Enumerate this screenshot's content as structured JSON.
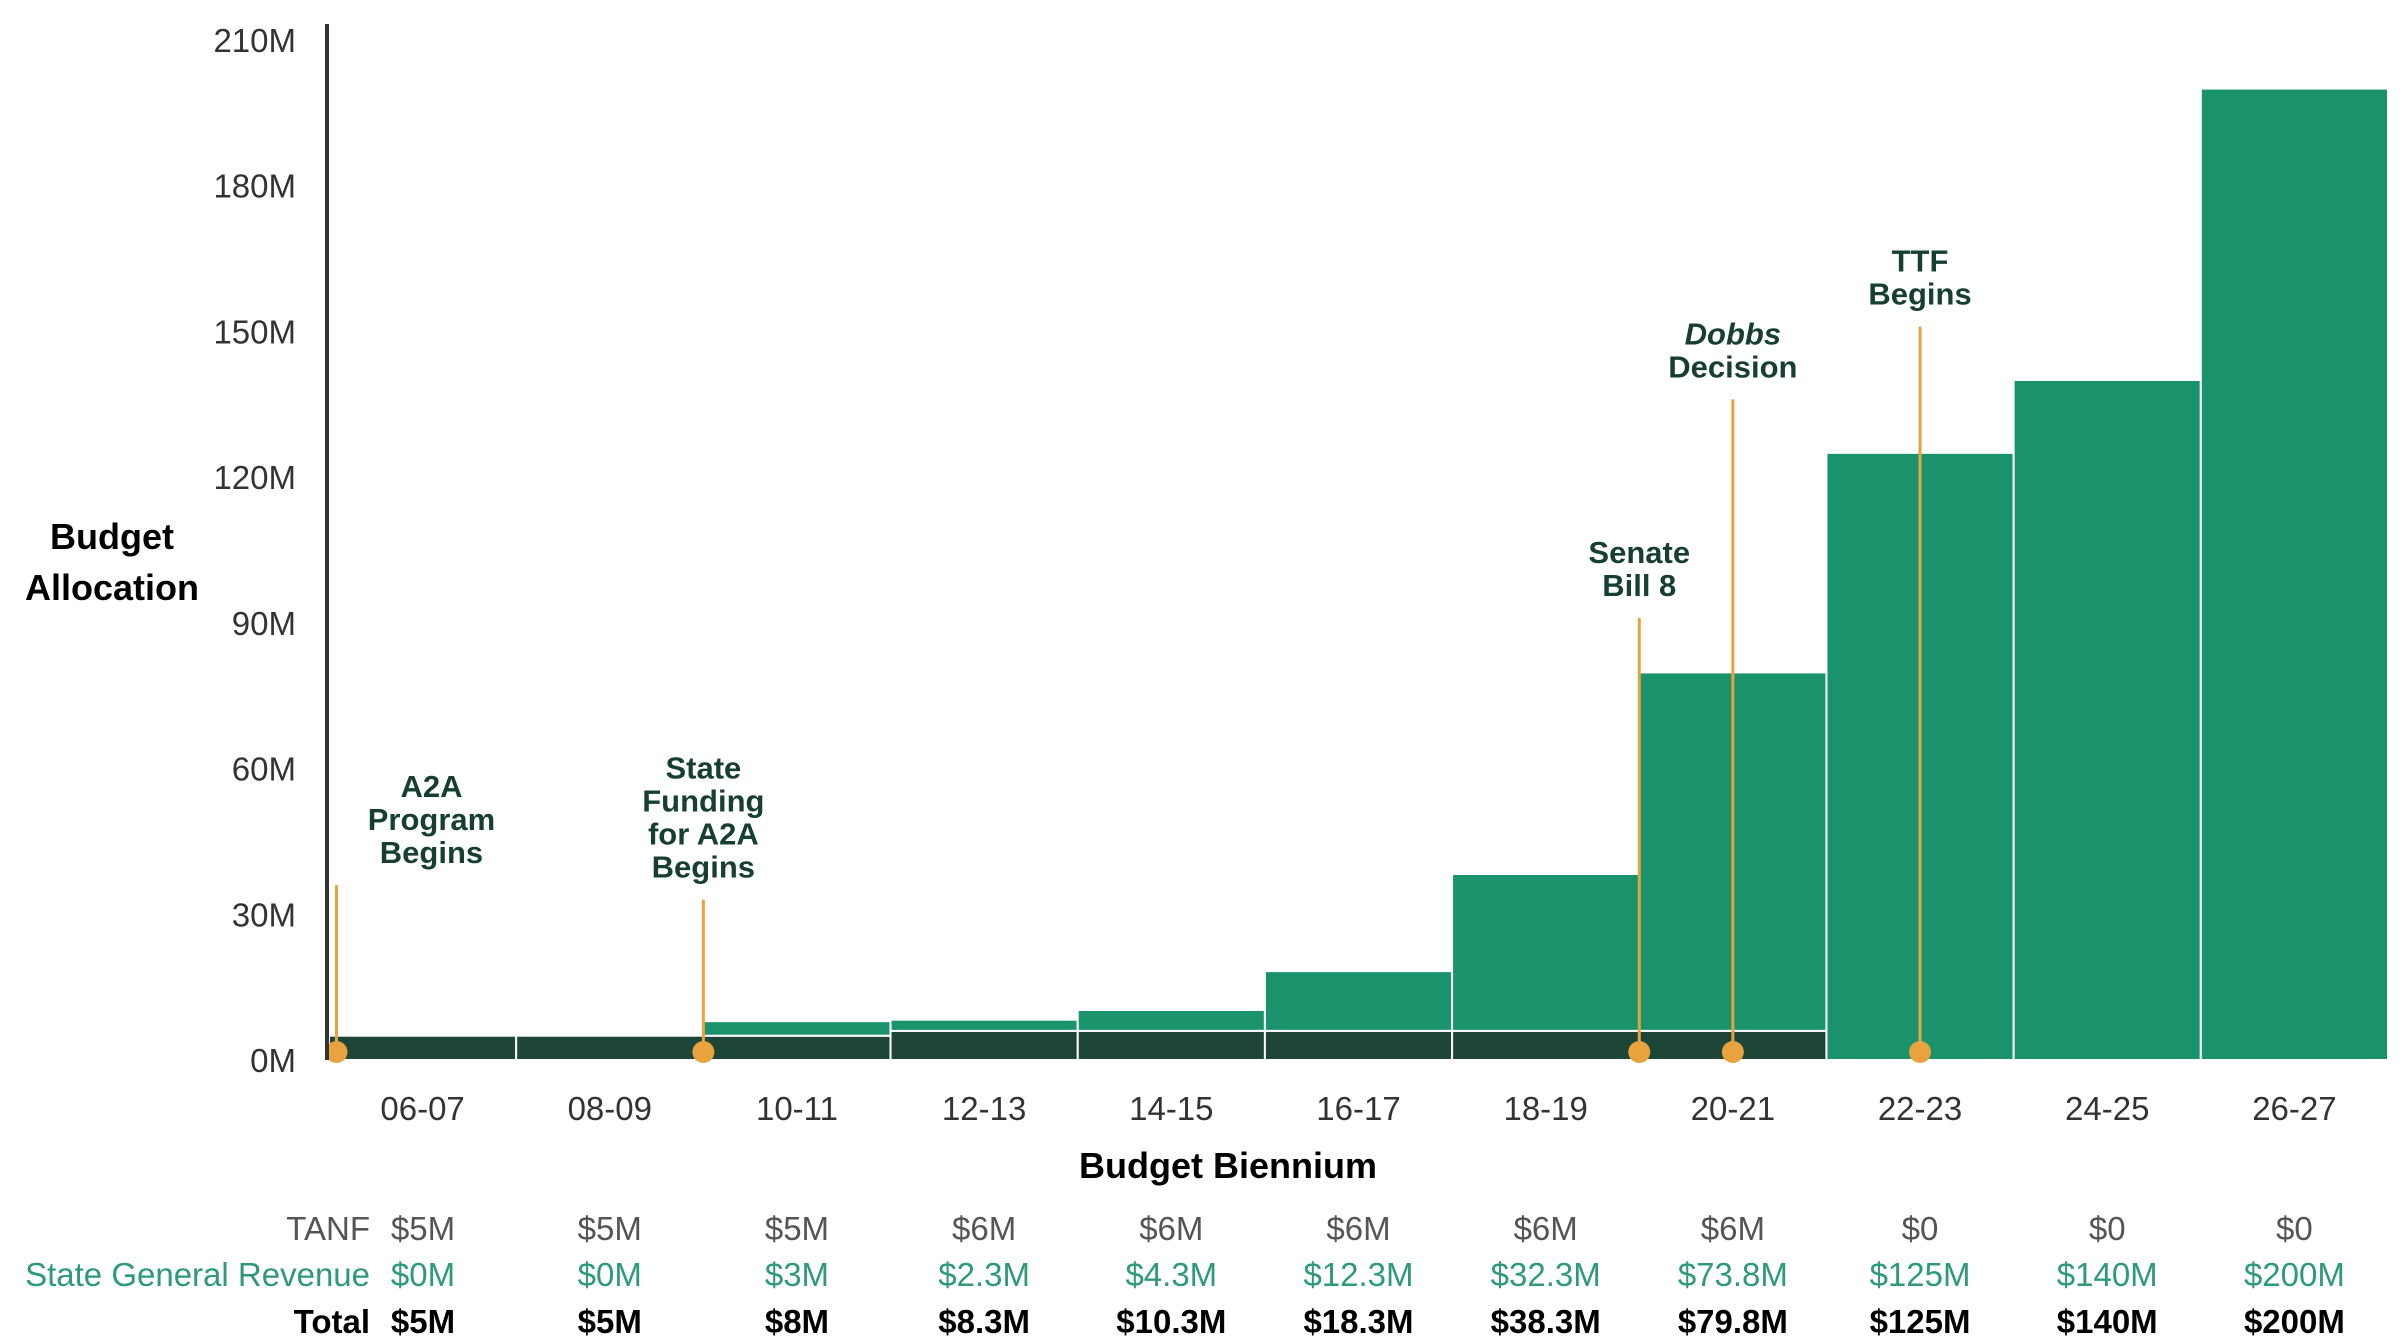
{
  "chart_data": {
    "type": "bar",
    "stacked": true,
    "title": "",
    "xlabel": "Budget Biennium",
    "ylabel": [
      "Budget",
      "Allocation"
    ],
    "ylim": [
      0,
      210
    ],
    "yticks": [
      "0M",
      "30M",
      "60M",
      "90M",
      "120M",
      "150M",
      "180M",
      "210M"
    ],
    "categories": [
      "06-07",
      "08-09",
      "10-11",
      "12-13",
      "14-15",
      "16-17",
      "18-19",
      "20-21",
      "22-23",
      "24-25",
      "26-27"
    ],
    "series": [
      {
        "name": "TANF",
        "color": "#1d4638",
        "values": [
          5,
          5,
          5,
          6,
          6,
          6,
          6,
          6,
          0,
          0,
          0
        ]
      },
      {
        "name": "State General Revenue",
        "color": "#1a936c",
        "values": [
          0,
          0,
          3,
          2.3,
          4.3,
          12.3,
          32.3,
          73.8,
          125,
          140,
          200
        ]
      }
    ],
    "annotations": [
      {
        "lines": [
          "A2A",
          "Program",
          "Begins"
        ],
        "italic_first": false,
        "position": 0.04,
        "line_top": 36
      },
      {
        "lines": [
          "State",
          "Funding",
          "for A2A",
          "Begins"
        ],
        "italic_first": false,
        "position": 2.0,
        "line_top": 33
      },
      {
        "lines": [
          "Senate",
          "Bill 8"
        ],
        "italic_first": false,
        "position": 7.0,
        "line_top": 91
      },
      {
        "lines": [
          "Dobbs",
          "Decision"
        ],
        "italic_first": true,
        "position": 7.5,
        "line_top": 136
      },
      {
        "lines": [
          "TTF",
          "Begins"
        ],
        "italic_first": false,
        "position": 8.5,
        "line_top": 151
      }
    ],
    "marker_color": "#e8a33e",
    "table": {
      "rows": [
        {
          "label": "TANF",
          "values": [
            "$5M",
            "$5M",
            "$5M",
            "$6M",
            "$6M",
            "$6M",
            "$6M",
            "$6M",
            "$0",
            "$0",
            "$0"
          ]
        },
        {
          "label": "State General Revenue",
          "values": [
            "$0M",
            "$0M",
            "$3M",
            "$2.3M",
            "$4.3M",
            "$12.3M",
            "$32.3M",
            "$73.8M",
            "$125M",
            "$140M",
            "$200M"
          ]
        },
        {
          "label": "Total",
          "values": [
            "$5M",
            "$5M",
            "$8M",
            "$8.3M",
            "$10.3M",
            "$18.3M",
            "$38.3M",
            "$79.8M",
            "$125M",
            "$140M",
            "$200M"
          ]
        }
      ]
    }
  }
}
